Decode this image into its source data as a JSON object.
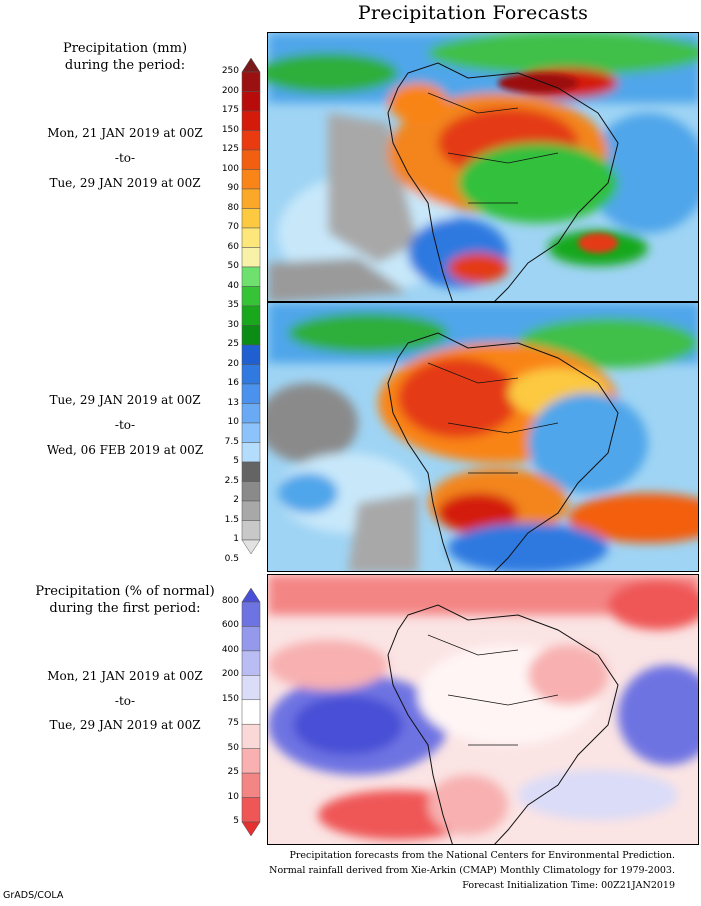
{
  "title": "Precipitation Forecasts",
  "top_section": {
    "header": [
      "Precipitation (mm)",
      "during the period:"
    ],
    "period1": {
      "start": "Mon, 21 JAN 2019 at 00Z",
      "sep": "-to-",
      "end": "Tue, 29 JAN 2019 at 00Z"
    },
    "period2": {
      "start": "Tue, 29 JAN 2019 at 00Z",
      "sep": "-to-",
      "end": "Wed, 06 FEB 2019 at 00Z"
    },
    "colorbar_ticks": [
      "250",
      "200",
      "175",
      "150",
      "125",
      "100",
      "90",
      "80",
      "70",
      "60",
      "50",
      "40",
      "35",
      "30",
      "25",
      "20",
      "16",
      "13",
      "10",
      "7.5",
      "5",
      "2.5",
      "2",
      "1.5",
      "1",
      "0.5"
    ],
    "colorbar_colors": [
      "#7a1a1a",
      "#9b1010",
      "#b80c0c",
      "#d41a0a",
      "#ea3a10",
      "#f35f10",
      "#f98418",
      "#fba828",
      "#fcc940",
      "#fde77a",
      "#f7f2a8",
      "#6ee06e",
      "#36c436",
      "#19a81c",
      "#0a8c15",
      "#1f5fd0",
      "#2f79e0",
      "#4a92ee",
      "#6aaaf5",
      "#8cc3fa",
      "#b4dcfc",
      "#646464",
      "#8a8a8a",
      "#a8a8a8",
      "#c8c8c8",
      "#e2e2e2"
    ]
  },
  "bottom_section": {
    "header": [
      "Precipitation (% of normal)",
      "during the first period:"
    ],
    "period": {
      "start": "Mon, 21 JAN 2019 at 00Z",
      "sep": "-to-",
      "end": "Tue, 29 JAN 2019 at 00Z"
    },
    "colorbar_ticks": [
      "800",
      "600",
      "400",
      "200",
      "150",
      "75",
      "50",
      "25",
      "10",
      "5"
    ],
    "colorbar_colors": [
      "#4a4fd6",
      "#6e73e2",
      "#9599ec",
      "#b9bdf3",
      "#dadcf8",
      "#ffffff",
      "#fbd8d8",
      "#f8b0b0",
      "#f48585",
      "#ef5656",
      "#e53030"
    ]
  },
  "footer": {
    "line1": "Precipitation forecasts from the National Centers for Environmental Prediction.",
    "line2": "Normal rainfall derived from Xie-Arkin (CMAP) Monthly Climatology for 1979-2003.",
    "line3": "Forecast Initialization Time: 00Z21JAN2019"
  },
  "credit": "GrADS/COLA"
}
